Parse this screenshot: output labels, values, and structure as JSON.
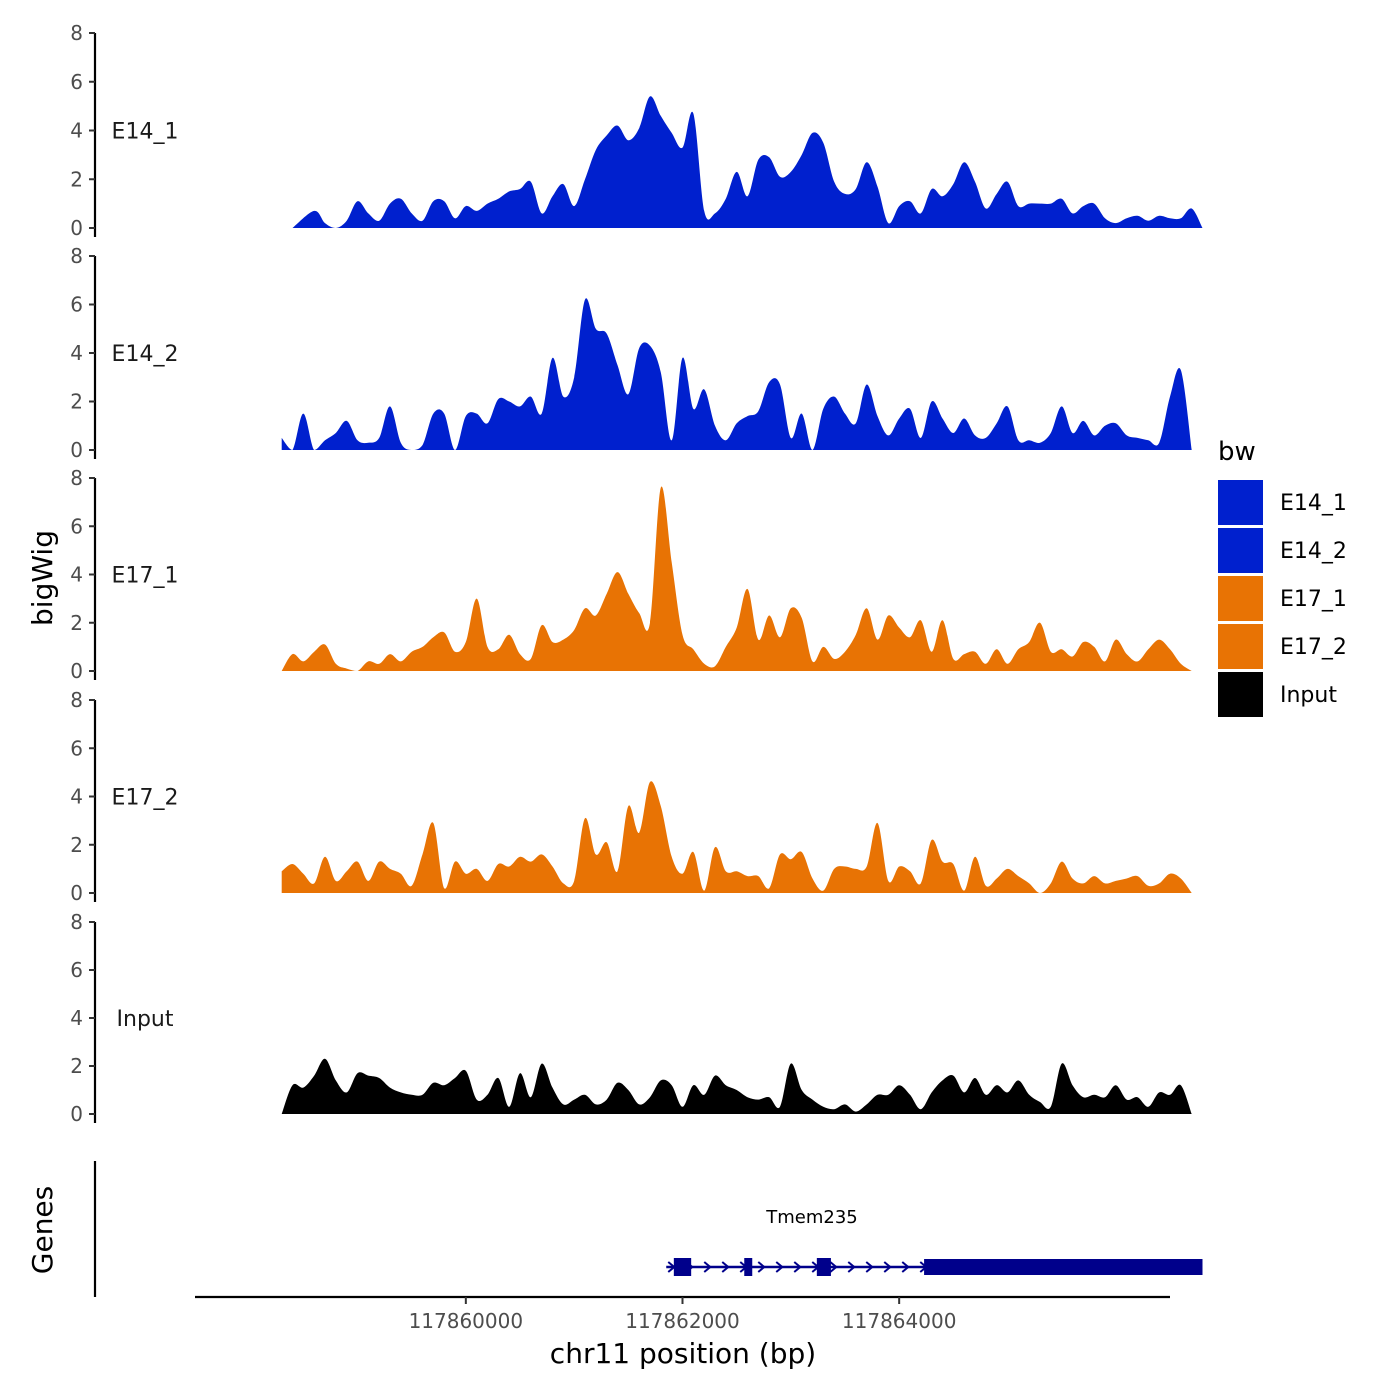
{
  "chart_data": {
    "type": "area",
    "ylabel": "bigWig",
    "xlabel": "chr11 position (bp)",
    "ylim": [
      0,
      8
    ],
    "yticks": [
      0,
      2,
      4,
      6,
      8
    ],
    "xlim": [
      117857500,
      117866500
    ],
    "xticks": [
      {
        "value": 117860000,
        "label": "117860000"
      },
      {
        "value": 117862000,
        "label": "117862000"
      },
      {
        "value": 117864000,
        "label": "117864000"
      }
    ],
    "legend": {
      "title": "bw",
      "position": "right",
      "entries": [
        {
          "name": "E14_1",
          "color": "#0020CE"
        },
        {
          "name": "E14_2",
          "color": "#0020CE"
        },
        {
          "name": "E17_1",
          "color": "#E87304"
        },
        {
          "name": "E17_2",
          "color": "#E87304"
        },
        {
          "name": "Input",
          "color": "#000000"
        }
      ]
    },
    "series": [
      {
        "name": "E14_1",
        "color": "#0020CE",
        "x": [
          117858400,
          117858600,
          117858700,
          117858800,
          117858900,
          117859000,
          117859100,
          117859200,
          117859300,
          117859400,
          117859500,
          117859600,
          117859700,
          117859800,
          117859900,
          117860000,
          117860100,
          117860200,
          117860300,
          117860400,
          117860500,
          117860600,
          117860700,
          117860800,
          117860900,
          117861000,
          117861100,
          117861200,
          117861300,
          117861400,
          117861500,
          117861600,
          117861700,
          117861800,
          117861900,
          117862000,
          117862100,
          117862200,
          117862300,
          117862400,
          117862500,
          117862600,
          117862700,
          117862800,
          117862900,
          117863000,
          117863100,
          117863200,
          117863300,
          117863400,
          117863500,
          117863600,
          117863700,
          117863800,
          117863900,
          117864000,
          117864100,
          117864200,
          117864300,
          117864400,
          117864500,
          117864600,
          117864700,
          117864800,
          117864900,
          117865000,
          117865100,
          117865200,
          117865300,
          117865400,
          117865500,
          117865600,
          117865700,
          117865800,
          117865900,
          117866000,
          117866100,
          117866200,
          117866300,
          117866400,
          117866500,
          117866600,
          117866700,
          117866800
        ],
        "values": [
          0,
          0.7,
          0.2,
          0,
          0.3,
          1.1,
          0.6,
          0.3,
          1.0,
          1.2,
          0.6,
          0.3,
          1.1,
          1.1,
          0.4,
          0.9,
          0.7,
          1.0,
          1.2,
          1.5,
          1.6,
          1.9,
          0.6,
          1.3,
          1.8,
          0.9,
          2.0,
          3.2,
          3.8,
          4.2,
          3.6,
          4.1,
          5.4,
          4.6,
          3.9,
          3.3,
          4.7,
          0.7,
          0.6,
          1.2,
          2.3,
          1.3,
          2.8,
          2.9,
          2.1,
          2.3,
          3.0,
          3.9,
          3.5,
          1.9,
          1.4,
          1.6,
          2.7,
          1.7,
          0.2,
          0.9,
          1.1,
          0.6,
          1.6,
          1.3,
          1.8,
          2.7,
          1.9,
          0.8,
          1.4,
          1.9,
          0.9,
          1.0,
          1.0,
          1.0,
          1.2,
          0.6,
          0.9,
          1.0,
          0.4,
          0.2,
          0.4,
          0.5,
          0.3,
          0.5,
          0.4,
          0.4,
          0.8,
          0
        ]
      },
      {
        "name": "E14_2",
        "color": "#0020CE",
        "x": [
          117858300,
          117858400,
          117858500,
          117858600,
          117858700,
          117858800,
          117858900,
          117859000,
          117859100,
          117859200,
          117859300,
          117859400,
          117859500,
          117859600,
          117859700,
          117859800,
          117859900,
          117860000,
          117860100,
          117860200,
          117860300,
          117860400,
          117860500,
          117860600,
          117860700,
          117860800,
          117860900,
          117861000,
          117861100,
          117861200,
          117861300,
          117861400,
          117861500,
          117861600,
          117861700,
          117861800,
          117861900,
          117862000,
          117862100,
          117862200,
          117862300,
          117862400,
          117862500,
          117862600,
          117862700,
          117862800,
          117862900,
          117863000,
          117863100,
          117863200,
          117863300,
          117863400,
          117863500,
          117863600,
          117863700,
          117863800,
          117863900,
          117864000,
          117864100,
          117864200,
          117864300,
          117864400,
          117864500,
          117864600,
          117864700,
          117864800,
          117864900,
          117865000,
          117865100,
          117865200,
          117865300,
          117865400,
          117865500,
          117865600,
          117865700,
          117865800,
          117865900,
          117866000,
          117866100,
          117866200,
          117866300,
          117866400,
          117866500,
          117866600,
          117866700
        ],
        "values": [
          0.5,
          0,
          1.5,
          0,
          0.4,
          0.7,
          1.2,
          0.4,
          0.3,
          0.5,
          1.8,
          0.3,
          0,
          0.2,
          1.5,
          1.5,
          0,
          1.4,
          1.5,
          1.1,
          2.1,
          2.0,
          1.8,
          2.2,
          1.5,
          3.8,
          2.2,
          3.0,
          6.2,
          5.0,
          4.8,
          3.5,
          2.3,
          4.2,
          4.3,
          3.2,
          0.4,
          3.8,
          1.7,
          2.5,
          1.0,
          0.4,
          1.1,
          1.4,
          1.6,
          2.8,
          2.7,
          0.5,
          1.5,
          0,
          1.7,
          2.2,
          1.5,
          1.1,
          2.7,
          1.4,
          0.6,
          1.3,
          1.7,
          0.5,
          2.0,
          1.3,
          0.7,
          1.3,
          0.6,
          0.5,
          1.1,
          1.8,
          0.4,
          0.4,
          0.3,
          0.7,
          1.8,
          0.7,
          1.2,
          0.6,
          1.0,
          1.1,
          0.6,
          0.5,
          0.4,
          0.3,
          2.2,
          3.3,
          0
        ]
      },
      {
        "name": "E17_1",
        "color": "#E87304",
        "x": [
          117858300,
          117858400,
          117858500,
          117858600,
          117858700,
          117858800,
          117858900,
          117859000,
          117859100,
          117859200,
          117859300,
          117859400,
          117859500,
          117859600,
          117859700,
          117859800,
          117859900,
          117860000,
          117860100,
          117860200,
          117860300,
          117860400,
          117860500,
          117860600,
          117860700,
          117860800,
          117860900,
          117861000,
          117861100,
          117861200,
          117861300,
          117861400,
          117861500,
          117861600,
          117861700,
          117861800,
          117861900,
          117862000,
          117862100,
          117862200,
          117862300,
          117862400,
          117862500,
          117862600,
          117862700,
          117862800,
          117862900,
          117863000,
          117863100,
          117863200,
          117863300,
          117863400,
          117863500,
          117863600,
          117863700,
          117863800,
          117863900,
          117864000,
          117864100,
          117864200,
          117864300,
          117864400,
          117864500,
          117864600,
          117864700,
          117864800,
          117864900,
          117865000,
          117865100,
          117865200,
          117865300,
          117865400,
          117865500,
          117865600,
          117865700,
          117865800,
          117865900,
          117866000,
          117866100,
          117866200,
          117866300,
          117866400,
          117866500,
          117866600,
          117866700
        ],
        "values": [
          0,
          0.7,
          0.4,
          0.8,
          1.1,
          0.3,
          0.1,
          0,
          0.4,
          0.3,
          0.7,
          0.4,
          0.8,
          1.0,
          1.4,
          1.6,
          0.8,
          1.2,
          3.0,
          1.0,
          0.9,
          1.5,
          0.7,
          0.5,
          1.9,
          1.2,
          1.3,
          1.7,
          2.6,
          2.3,
          3.2,
          4.1,
          3.2,
          2.4,
          2.0,
          7.6,
          4.5,
          1.5,
          0.9,
          0.3,
          0.2,
          1.0,
          1.8,
          3.4,
          1.3,
          2.3,
          1.4,
          2.6,
          2.2,
          0.4,
          1.0,
          0.5,
          0.8,
          1.5,
          2.6,
          1.3,
          2.3,
          1.8,
          1.4,
          2.1,
          0.8,
          2.1,
          0.5,
          0.7,
          0.8,
          0.3,
          0.9,
          0.3,
          0.9,
          1.2,
          2.0,
          0.8,
          0.9,
          0.6,
          1.2,
          1.0,
          0.4,
          1.3,
          0.7,
          0.4,
          0.9,
          1.3,
          0.9,
          0.3,
          0
        ]
      },
      {
        "name": "E17_2",
        "color": "#E87304",
        "x": [
          117858300,
          117858400,
          117858500,
          117858600,
          117858700,
          117858800,
          117858900,
          117859000,
          117859100,
          117859200,
          117859300,
          117859400,
          117859500,
          117859600,
          117859700,
          117859800,
          117859900,
          117860000,
          117860100,
          117860200,
          117860300,
          117860400,
          117860500,
          117860600,
          117860700,
          117860800,
          117860900,
          117861000,
          117861100,
          117861200,
          117861300,
          117861400,
          117861500,
          117861600,
          117861700,
          117861800,
          117861900,
          117862000,
          117862100,
          117862200,
          117862300,
          117862400,
          117862500,
          117862600,
          117862700,
          117862800,
          117862900,
          117863000,
          117863100,
          117863200,
          117863300,
          117863400,
          117863500,
          117863600,
          117863700,
          117863800,
          117863900,
          117864000,
          117864100,
          117864200,
          117864300,
          117864400,
          117864500,
          117864600,
          117864700,
          117864800,
          117864900,
          117865000,
          117865100,
          117865200,
          117865300,
          117865400,
          117865500,
          117865600,
          117865700,
          117865800,
          117865900,
          117866000,
          117866100,
          117866200,
          117866300,
          117866400,
          117866500,
          117866600,
          117866700
        ],
        "values": [
          0.9,
          1.2,
          0.8,
          0.4,
          1.5,
          0.5,
          0.9,
          1.3,
          0.5,
          1.3,
          1.0,
          0.8,
          0.3,
          1.6,
          2.9,
          0.2,
          1.3,
          0.8,
          1.0,
          0.5,
          1.2,
          1.1,
          1.5,
          1.3,
          1.6,
          1.1,
          0.4,
          0.5,
          3.1,
          1.6,
          2.1,
          0.9,
          3.6,
          2.5,
          4.6,
          3.6,
          1.5,
          0.8,
          1.7,
          0.1,
          1.9,
          0.9,
          0.9,
          0.7,
          0.7,
          0.2,
          1.6,
          1.4,
          1.7,
          0.6,
          0.1,
          1.0,
          1.1,
          1.0,
          1.1,
          2.9,
          0.5,
          1.1,
          0.9,
          0.4,
          2.2,
          1.3,
          1.2,
          0.1,
          1.5,
          0.3,
          0.6,
          1.0,
          0.7,
          0.4,
          0,
          0.4,
          1.3,
          0.6,
          0.4,
          0.7,
          0.4,
          0.5,
          0.6,
          0.7,
          0.3,
          0.4,
          0.8,
          0.6,
          0
        ]
      },
      {
        "name": "Input",
        "color": "#000000",
        "x": [
          117858300,
          117858400,
          117858500,
          117858600,
          117858700,
          117858800,
          117858900,
          117859000,
          117859100,
          117859200,
          117859300,
          117859400,
          117859500,
          117859600,
          117859700,
          117859800,
          117859900,
          117860000,
          117860100,
          117860200,
          117860300,
          117860400,
          117860500,
          117860600,
          117860700,
          117860800,
          117860900,
          117861000,
          117861100,
          117861200,
          117861300,
          117861400,
          117861500,
          117861600,
          117861700,
          117861800,
          117861900,
          117862000,
          117862100,
          117862200,
          117862300,
          117862400,
          117862500,
          117862600,
          117862700,
          117862800,
          117862900,
          117863000,
          117863100,
          117863200,
          117863300,
          117863400,
          117863500,
          117863600,
          117863700,
          117863800,
          117863900,
          117864000,
          117864100,
          117864200,
          117864300,
          117864400,
          117864500,
          117864600,
          117864700,
          117864800,
          117864900,
          117865000,
          117865100,
          117865200,
          117865300,
          117865400,
          117865500,
          117865600,
          117865700,
          117865800,
          117865900,
          117866000,
          117866100,
          117866200,
          117866300,
          117866400,
          117866500,
          117866600,
          117866700
        ],
        "values": [
          0,
          1.2,
          1.1,
          1.6,
          2.3,
          1.4,
          0.9,
          1.7,
          1.6,
          1.5,
          1.1,
          0.9,
          0.8,
          0.8,
          1.3,
          1.2,
          1.5,
          1.8,
          0.6,
          0.8,
          1.5,
          0.3,
          1.7,
          0.7,
          2.1,
          1.1,
          0.4,
          0.6,
          0.8,
          0.4,
          0.6,
          1.3,
          1.0,
          0.4,
          0.7,
          1.4,
          1.2,
          0.3,
          1.2,
          0.8,
          1.6,
          1.2,
          1.0,
          0.7,
          0.6,
          0.7,
          0.3,
          2.1,
          1.0,
          0.6,
          0.3,
          0.2,
          0.4,
          0.1,
          0.4,
          0.8,
          0.8,
          1.2,
          0.8,
          0.2,
          0.9,
          1.4,
          1.6,
          0.9,
          1.5,
          0.8,
          1.2,
          0.9,
          1.4,
          0.8,
          0.5,
          0.3,
          2.1,
          1.2,
          0.7,
          0.8,
          0.7,
          1.2,
          0.6,
          0.7,
          0.3,
          0.9,
          0.8,
          1.2,
          0
        ]
      }
    ],
    "genes_panel": {
      "ylabel": "Genes",
      "gene_name": "Tmem235",
      "color": "#00008B",
      "strand": "+",
      "line_range": [
        117861850,
        117866800
      ],
      "exons": [
        {
          "start": 117861920,
          "end": 117862080,
          "thick": false
        },
        {
          "start": 117862570,
          "end": 117862640,
          "thick": false
        },
        {
          "start": 117863240,
          "end": 117863370,
          "thick": false
        },
        {
          "start": 117864230,
          "end": 117866800,
          "thick": true
        }
      ]
    }
  }
}
